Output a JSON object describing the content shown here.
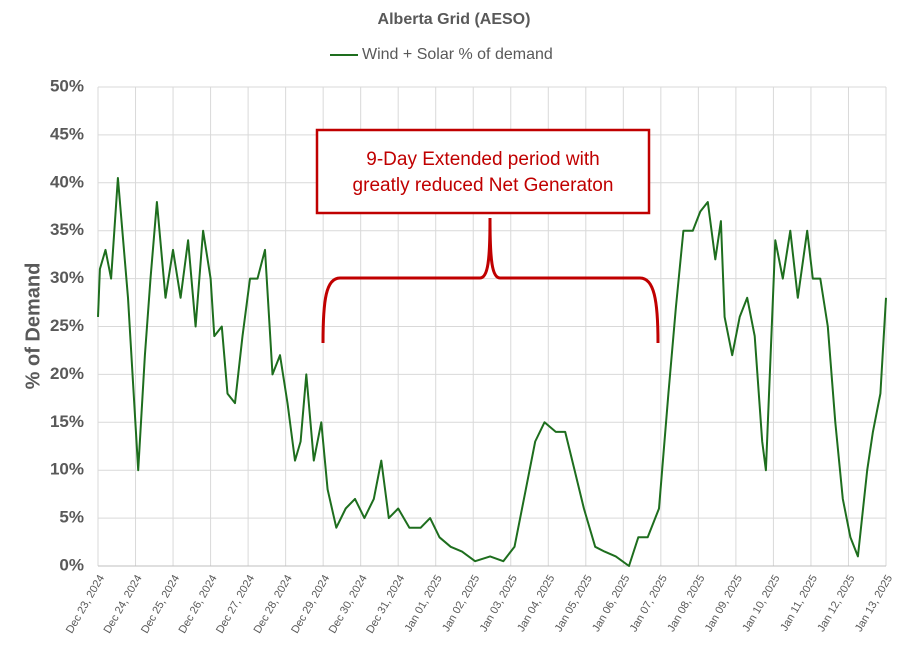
{
  "chart_data": {
    "type": "line",
    "title": "Alberta Grid (AESO)",
    "y_label": "% of Demand",
    "legend": "top",
    "grid": true,
    "xlim": [
      0,
      21
    ],
    "ylim": [
      0,
      50
    ],
    "yticks": [
      {
        "value": 0,
        "label": "0%"
      },
      {
        "value": 5,
        "label": "5%"
      },
      {
        "value": 10,
        "label": "10%"
      },
      {
        "value": 15,
        "label": "15%"
      },
      {
        "value": 20,
        "label": "20%"
      },
      {
        "value": 25,
        "label": "25%"
      },
      {
        "value": 30,
        "label": "30%"
      },
      {
        "value": 35,
        "label": "35%"
      },
      {
        "value": 40,
        "label": "40%"
      },
      {
        "value": 45,
        "label": "45%"
      },
      {
        "value": 50,
        "label": "50%"
      }
    ],
    "xticks": [
      {
        "value": 0,
        "label": "Dec 23, 2024"
      },
      {
        "value": 1,
        "label": "Dec 24, 2024"
      },
      {
        "value": 2,
        "label": "Dec 25, 2024"
      },
      {
        "value": 3,
        "label": "Dec 26, 2024"
      },
      {
        "value": 4,
        "label": "Dec 27, 2024"
      },
      {
        "value": 5,
        "label": "Dec 28, 2024"
      },
      {
        "value": 6,
        "label": "Dec 29, 2024"
      },
      {
        "value": 7,
        "label": "Dec 30, 2024"
      },
      {
        "value": 8,
        "label": "Dec 31, 2024"
      },
      {
        "value": 9,
        "label": "Jan 01, 2025"
      },
      {
        "value": 10,
        "label": "Jan 02, 2025"
      },
      {
        "value": 11,
        "label": "Jan 03, 2025"
      },
      {
        "value": 12,
        "label": "Jan 04, 2025"
      },
      {
        "value": 13,
        "label": "Jan 05, 2025"
      },
      {
        "value": 14,
        "label": "Jan 06, 2025"
      },
      {
        "value": 15,
        "label": "Jan 07, 2025"
      },
      {
        "value": 16,
        "label": "Jan 08, 2025"
      },
      {
        "value": 17,
        "label": "Jan 09, 2025"
      },
      {
        "value": 18,
        "label": "Jan 10, 2025"
      },
      {
        "value": 19,
        "label": "Jan 11, 2025"
      },
      {
        "value": 20,
        "label": "Jan 12, 2025"
      },
      {
        "value": 21,
        "label": "Jan 13, 2025"
      }
    ],
    "x": [
      0,
      0.05,
      0.2,
      0.35,
      0.53,
      0.8,
      1.07,
      1.25,
      1.4,
      1.57,
      1.8,
      2.0,
      2.2,
      2.4,
      2.6,
      2.8,
      3.0,
      3.1,
      3.3,
      3.45,
      3.65,
      3.85,
      4.05,
      4.25,
      4.45,
      4.65,
      4.85,
      5.05,
      5.25,
      5.4,
      5.55,
      5.75,
      5.95,
      6.12,
      6.35,
      6.6,
      6.85,
      7.1,
      7.35,
      7.55,
      7.75,
      8.0,
      8.3,
      8.6,
      8.85,
      9.1,
      9.4,
      9.7,
      10.05,
      10.45,
      10.8,
      11.1,
      11.4,
      11.65,
      11.9,
      12.2,
      12.45,
      12.7,
      12.95,
      13.25,
      13.5,
      13.8,
      14.15,
      14.4,
      14.65,
      14.95,
      15.2,
      15.4,
      15.6,
      15.85,
      16.05,
      16.25,
      16.45,
      16.6,
      16.7,
      16.9,
      17.1,
      17.3,
      17.5,
      17.7,
      17.8,
      18.05,
      18.25,
      18.45,
      18.65,
      18.9,
      19.05,
      19.25,
      19.45,
      19.65,
      19.85,
      20.05,
      20.25,
      20.5,
      20.65,
      20.85,
      21.0
    ],
    "series": [
      {
        "name": "Wind + Solar % of demand",
        "color": "#1e6e1e",
        "values": [
          26,
          31,
          33,
          30,
          40.5,
          28,
          10,
          22,
          30,
          38,
          28,
          33,
          28,
          34,
          25,
          35,
          30,
          24,
          25,
          18,
          17,
          24,
          30,
          30,
          33,
          20,
          22,
          17,
          11,
          13,
          20,
          11,
          15,
          8,
          4,
          6,
          7,
          5,
          7,
          11,
          5,
          6,
          4,
          4,
          5,
          3,
          2,
          1.5,
          0.5,
          1,
          0.5,
          2,
          8,
          13,
          15,
          14,
          14,
          10,
          6,
          2,
          1.5,
          1,
          0,
          3,
          3,
          6,
          18,
          27,
          35,
          35,
          37,
          38,
          32,
          36,
          26,
          22,
          26,
          28,
          24,
          13,
          10,
          34,
          30,
          35,
          28,
          35,
          30,
          30,
          25,
          15,
          7,
          3,
          1,
          10,
          14,
          18,
          28
        ]
      }
    ],
    "annotation": {
      "lines": [
        "9-Day Extended period with",
        "greatly reduced Net Generaton"
      ],
      "color": "#c00000"
    }
  }
}
